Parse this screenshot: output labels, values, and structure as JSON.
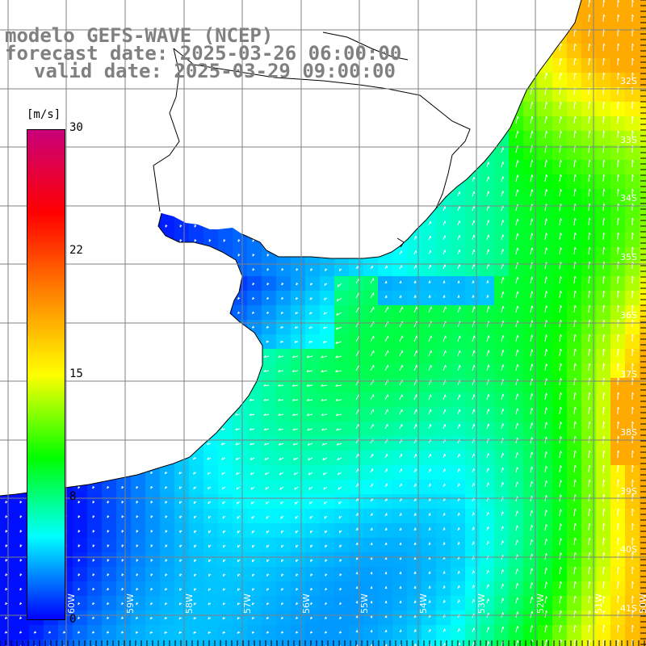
{
  "title": {
    "line1": "modelo GEFS-WAVE (NCEP)",
    "line2": "forecast date: 2025-03-26 06:00:00",
    "line3": "valid date: 2025-03-29 09:00:00"
  },
  "colorbar": {
    "unit": "[m/s]",
    "ticks": [
      "30",
      "22",
      "15",
      "8",
      "0"
    ],
    "min": 0,
    "max": 30,
    "colors": [
      "#0000ff",
      "#00ffff",
      "#00ff00",
      "#ffff00",
      "#ff8000",
      "#ff0000",
      "#c8007a"
    ]
  },
  "axes": {
    "lat_labels": [
      "32S",
      "33S",
      "34S",
      "35S",
      "36S",
      "37S",
      "38S",
      "39S",
      "40S",
      "41S"
    ],
    "lon_labels": [
      "60W",
      "59W",
      "58W",
      "57W",
      "56W",
      "55W",
      "54W",
      "53W",
      "52W",
      "51W",
      "50W"
    ]
  },
  "colors": {
    "land": "#ffffff",
    "grid": "#808080",
    "coast": "#000000",
    "arrow": "#ffffff"
  }
}
